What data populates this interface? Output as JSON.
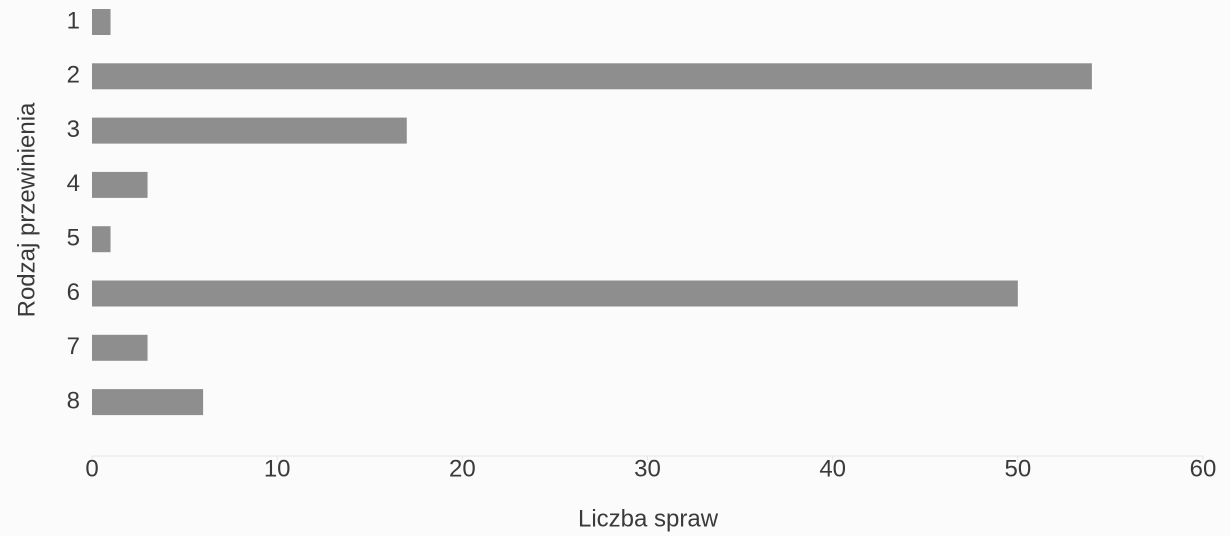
{
  "chart_data": {
    "type": "bar",
    "orientation": "horizontal",
    "xlabel": "Liczba spraw",
    "ylabel": "Rodzaj przewinienia",
    "categories": [
      "1",
      "2",
      "3",
      "4",
      "5",
      "6",
      "7",
      "8"
    ],
    "values": [
      1,
      54,
      17,
      3,
      1,
      50,
      3,
      6
    ],
    "color": "#8e8e8e",
    "xlim": [
      0,
      60
    ],
    "xticks": [
      0,
      10,
      20,
      30,
      40,
      50,
      60
    ],
    "grid": false
  }
}
